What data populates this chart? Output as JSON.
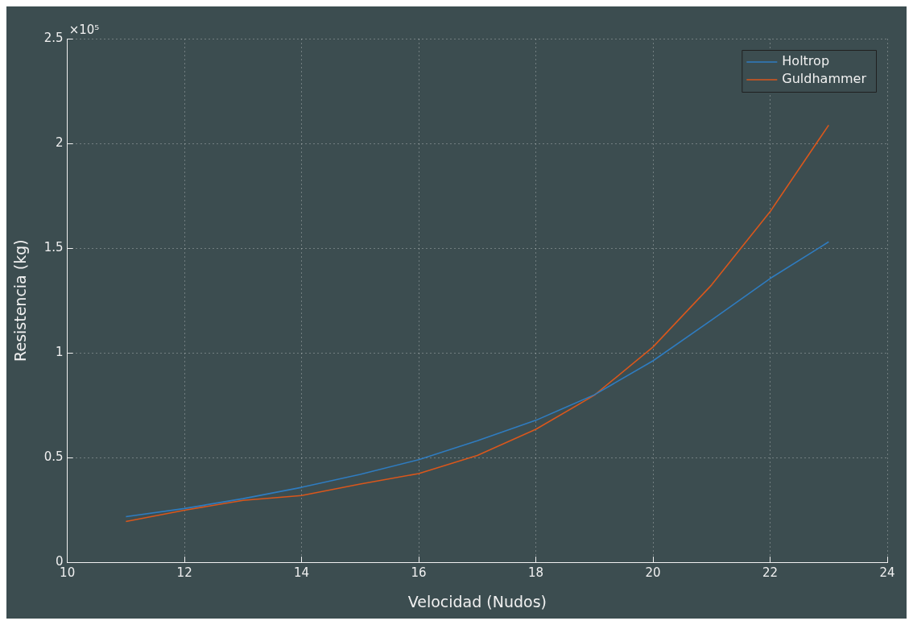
{
  "chart_data": {
    "type": "line",
    "xlabel": "Velocidad (Nudos)",
    "ylabel": "Resistencia (kg)",
    "annotations": [
      "×10⁵"
    ],
    "x": [
      11,
      12,
      13,
      14,
      15,
      16,
      17,
      18,
      19,
      20,
      21,
      22,
      23
    ],
    "series": [
      {
        "name": "Holtrop",
        "color": "#2f7cc0",
        "values": [
          0.218,
          0.257,
          0.304,
          0.358,
          0.42,
          0.49,
          0.58,
          0.678,
          0.8,
          0.962,
          1.157,
          1.355,
          1.53
        ]
      },
      {
        "name": "Guldhammer",
        "color": "#d9571c",
        "values": [
          0.195,
          0.249,
          0.296,
          0.319,
          0.374,
          0.424,
          0.51,
          0.635,
          0.798,
          1.028,
          1.324,
          1.674,
          2.087
        ]
      }
    ],
    "xlim": [
      10,
      24
    ],
    "xticks": [
      10,
      12,
      14,
      16,
      18,
      20,
      22,
      24
    ],
    "ylim": [
      0,
      2.5
    ],
    "yticks": [
      0,
      0.5,
      1,
      1.5,
      2,
      2.5
    ],
    "grid": true,
    "legend": "top right",
    "marker": "none",
    "line_style": "solid"
  }
}
